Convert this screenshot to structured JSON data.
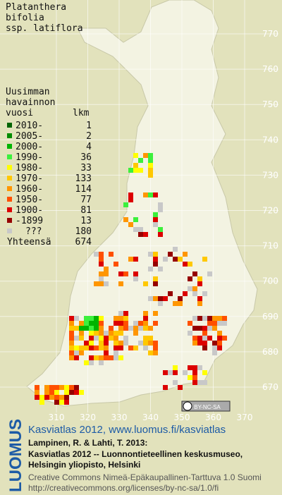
{
  "title": [
    "Platanthera",
    "bifolia",
    "ssp. latiflora"
  ],
  "legend": {
    "header": [
      "Uusimman",
      "havainnon",
      "vuosi"
    ],
    "count_header": "lkm",
    "rows": [
      {
        "label": "2010-",
        "count": 1,
        "color": "#006400"
      },
      {
        "label": "2005-",
        "count": 2,
        "color": "#008c00"
      },
      {
        "label": "2000-",
        "count": 4,
        "color": "#00b400"
      },
      {
        "label": "1990-",
        "count": 36,
        "color": "#3cf03c"
      },
      {
        "label": "1980-",
        "count": 33,
        "color": "#ffff00"
      },
      {
        "label": "1970-",
        "count": 133,
        "color": "#ffc800"
      },
      {
        "label": "1960-",
        "count": 114,
        "color": "#ff9600"
      },
      {
        "label": "1950-",
        "count": 77,
        "color": "#ff5000"
      },
      {
        "label": "1900-",
        "count": 81,
        "color": "#dc0000"
      },
      {
        "label": "-1899",
        "count": 13,
        "color": "#960000"
      },
      {
        "label": "???",
        "count": 180,
        "color": "#c8c8c8"
      }
    ],
    "total_label": "Yhteensä",
    "total": 674
  },
  "map": {
    "xticks": [
      310,
      320,
      330,
      340,
      350,
      360,
      370
    ],
    "yticks": [
      770,
      760,
      750,
      740,
      730,
      720,
      710,
      700,
      690,
      680,
      670
    ],
    "xlim": [
      310,
      370
    ],
    "ylim": [
      670,
      770
    ]
  },
  "license_badge": "BY-NC-SA",
  "logo": "LUOMUS",
  "credits": {
    "heading": "Kasviatlas 2012, www.luomus.fi/kasviatlas",
    "citation": [
      "Lampinen, R. & Lahti, T. 2013:",
      "Kasviatlas 2012 -- Luonnontieteellinen keskusmuseo,",
      "Helsingin yliopisto, Helsinki"
    ],
    "license": [
      "Creative Commons Nimeä-Epäkaupallinen-Tarttuva 1.0 Suomi",
      "http://creativecommons.org/licenses/by-nc-sa/1.0/fi"
    ]
  }
}
